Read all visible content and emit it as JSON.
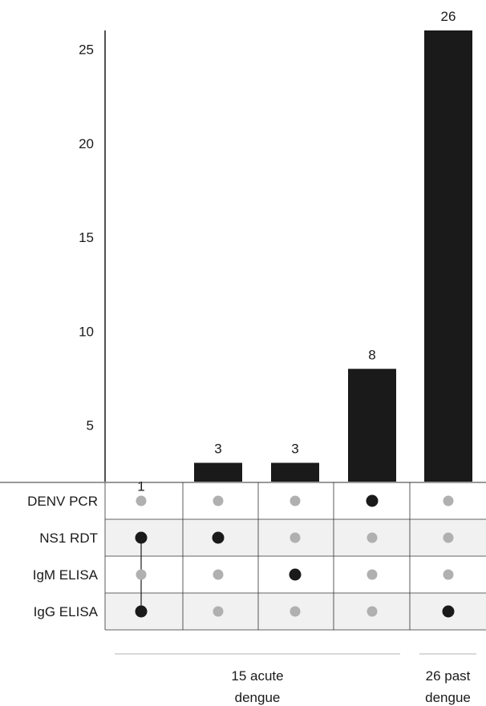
{
  "chart_data": {
    "type": "bar",
    "ylim": [
      2,
      26
    ],
    "y_ticks": [
      5,
      10,
      15,
      20,
      25
    ],
    "categories": [
      "set1",
      "set2",
      "set3",
      "set4",
      "set5"
    ],
    "values": [
      1,
      3,
      3,
      8,
      26
    ],
    "data_labels": [
      "1",
      "3",
      "3",
      "8",
      "26"
    ],
    "grid": false,
    "matrix": {
      "rows": [
        "DENV PCR",
        "NS1 RDT",
        "IgM ELISA",
        "IgG ELISA"
      ],
      "cells": [
        [
          0,
          1,
          0,
          1
        ],
        [
          0,
          1,
          0,
          0
        ],
        [
          0,
          0,
          1,
          0
        ],
        [
          1,
          0,
          0,
          0
        ],
        [
          0,
          0,
          0,
          1
        ]
      ]
    },
    "groups": [
      {
        "line1": "15 acute",
        "line2": "dengue",
        "columns": [
          0,
          3
        ]
      },
      {
        "line1": "26 past",
        "line2": "dengue",
        "columns": [
          4,
          4
        ]
      }
    ]
  },
  "colors": {
    "bar": "#1a1a1a",
    "dot_active": "#1a1a1a",
    "dot_inactive": "#b0b0b0",
    "row_shade": "#f0f1f0",
    "grid_line": "#333333",
    "group_line": "#b5b5b5"
  }
}
